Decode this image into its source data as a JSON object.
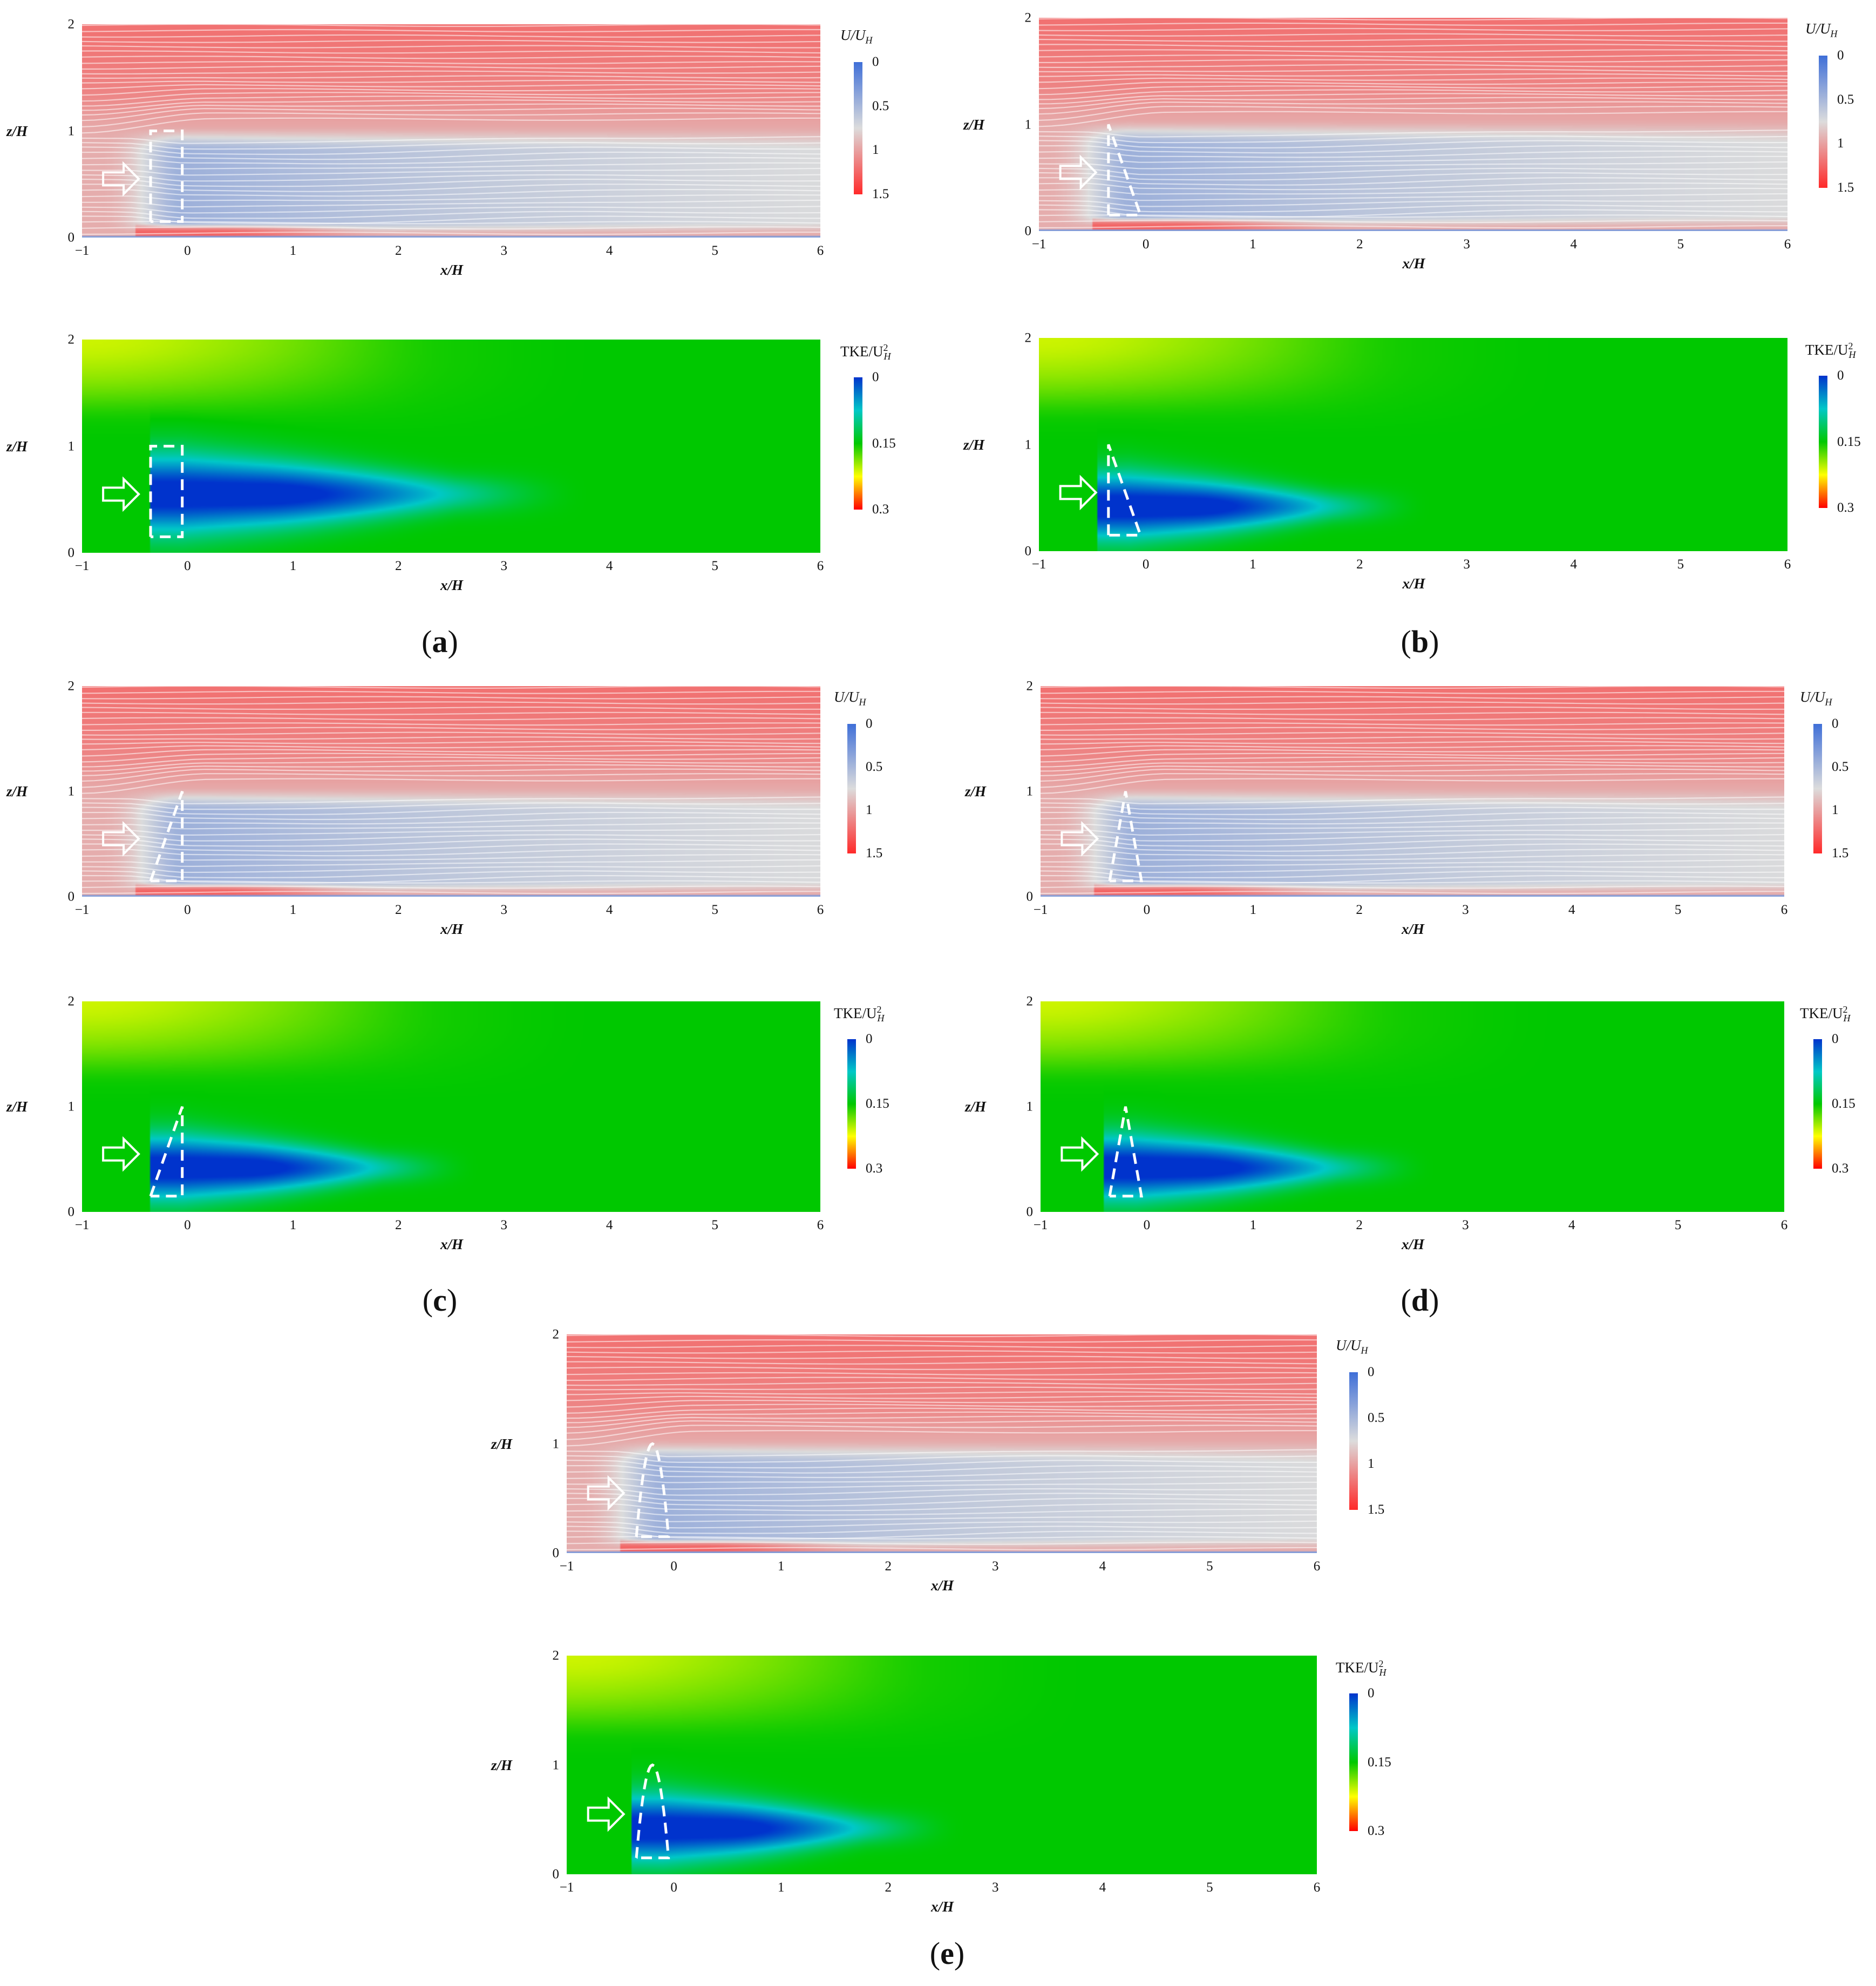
{
  "figure": {
    "panels": [
      {
        "id": "a",
        "caption_label": "a",
        "obstacle": "rect"
      },
      {
        "id": "b",
        "caption_label": "b",
        "obstacle": "triangle-back"
      },
      {
        "id": "c",
        "caption_label": "c",
        "obstacle": "triangle-front"
      },
      {
        "id": "d",
        "caption_label": "d",
        "obstacle": "triangle-lean"
      },
      {
        "id": "e",
        "caption_label": "e",
        "obstacle": "parabola"
      }
    ]
  },
  "chart_data": [
    {
      "type": "heatmap",
      "name": "streamwise-velocity",
      "title": "U/U_H",
      "colorbar": {
        "title_main": "U/U",
        "title_sub": "H",
        "ticks": [
          "0",
          "0.5",
          "1",
          "1.5"
        ],
        "range": [
          0,
          1.5
        ],
        "colors": [
          "#3f6fd8",
          "#dcdcdc",
          "#ff2a2a"
        ]
      },
      "xlabel": "x/H",
      "ylabel": "z/H",
      "xlim": [
        -1,
        6
      ],
      "ylim": [
        0,
        2
      ],
      "xticks": [
        "−1",
        "0",
        "1",
        "2",
        "3",
        "4",
        "5",
        "6"
      ],
      "yticks": [
        "0",
        "1",
        "2"
      ],
      "obstacle_extent_z": [
        0.15,
        1.0
      ],
      "wake_deficit_core_value": 0.45,
      "freestream_value": 1.2
    },
    {
      "type": "heatmap",
      "name": "turbulent-kinetic-energy",
      "title": "TKE/U_H^2",
      "colorbar": {
        "title_main": "TKE/U",
        "title_sub": "H",
        "title_sup": "2",
        "ticks": [
          "0",
          "0.15",
          "0.3"
        ],
        "range": [
          0,
          0.3
        ],
        "colors": [
          "#0033cc",
          "#00c8c8",
          "#00c800",
          "#ffff00",
          "#ff0000"
        ]
      },
      "xlabel": "x/H",
      "ylabel": "z/H",
      "xlim": [
        -1,
        6
      ],
      "ylim": [
        0,
        2
      ],
      "xticks": [
        "−1",
        "0",
        "1",
        "2",
        "3",
        "4",
        "5",
        "6"
      ],
      "yticks": [
        "0",
        "1",
        "2"
      ],
      "wake_core_value": 0.0,
      "ambient_value": 0.15,
      "upper_left_value": 0.24
    }
  ]
}
